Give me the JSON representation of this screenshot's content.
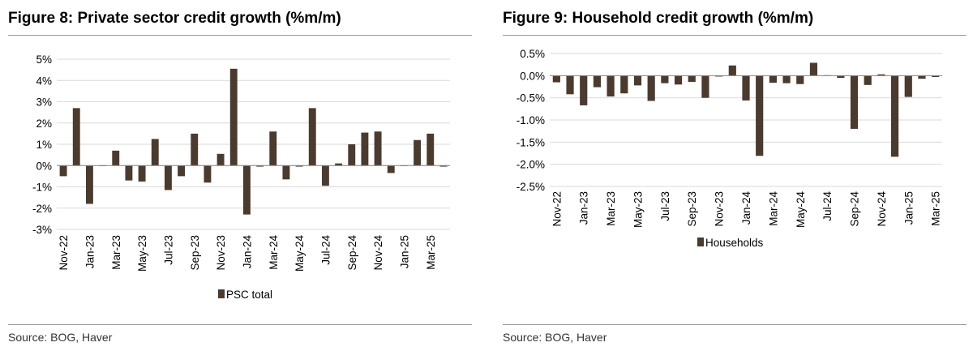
{
  "charts": [
    {
      "figure_title": "Figure 8: Private sector credit growth (%m/m)",
      "source": "Source: BOG, Haver"
    },
    {
      "figure_title": "Figure 9: Household credit growth (%m/m)",
      "source": "Source: BOG, Haver"
    }
  ],
  "colors": {
    "bar": "#4b3a2e",
    "grid": "#d9d9d9",
    "axis": "#888888"
  },
  "chart_data": [
    {
      "type": "bar",
      "title": "Figure 8: Private sector credit growth (%m/m)",
      "categories": [
        "Nov-22",
        "Dec-22",
        "Jan-23",
        "Feb-23",
        "Mar-23",
        "Apr-23",
        "May-23",
        "Jun-23",
        "Jul-23",
        "Aug-23",
        "Sep-23",
        "Oct-23",
        "Nov-23",
        "Dec-23",
        "Jan-24",
        "Feb-24",
        "Mar-24",
        "Apr-24",
        "May-24",
        "Jun-24",
        "Jul-24",
        "Aug-24",
        "Sep-24",
        "Oct-24",
        "Nov-24",
        "Dec-24",
        "Jan-25",
        "Feb-25",
        "Mar-25",
        "Apr-25"
      ],
      "tick_labels": [
        "Nov-22",
        "Jan-23",
        "Mar-23",
        "May-23",
        "Jul-23",
        "Sep-23",
        "Nov-23",
        "Jan-24",
        "Mar-24",
        "May-24",
        "Jul-24",
        "Sep-24",
        "Nov-24",
        "Jan-25",
        "Mar-25"
      ],
      "y_tick_labels": [
        "5%",
        "4%",
        "3%",
        "2%",
        "1%",
        "0%",
        "-1%",
        "-2%",
        "-3%"
      ],
      "series": [
        {
          "name": "PSC total",
          "values": [
            -0.5,
            2.7,
            -1.8,
            0.0,
            0.7,
            -0.7,
            -0.75,
            1.25,
            -1.15,
            -0.5,
            1.5,
            -0.8,
            0.55,
            4.55,
            -2.3,
            -0.05,
            1.6,
            -0.65,
            -0.05,
            2.7,
            -0.95,
            0.1,
            1.0,
            1.55,
            1.6,
            -0.35,
            0.0,
            1.2,
            1.5,
            -0.05
          ]
        }
      ],
      "ylim": [
        -3,
        5
      ],
      "grid": true,
      "legend": "bottom"
    },
    {
      "type": "bar",
      "title": "Figure 9: Household credit growth (%m/m)",
      "categories": [
        "Nov-22",
        "Dec-22",
        "Jan-23",
        "Feb-23",
        "Mar-23",
        "Apr-23",
        "May-23",
        "Jun-23",
        "Jul-23",
        "Aug-23",
        "Sep-23",
        "Oct-23",
        "Nov-23",
        "Dec-23",
        "Jan-24",
        "Feb-24",
        "Mar-24",
        "Apr-24",
        "May-24",
        "Jun-24",
        "Jul-24",
        "Aug-24",
        "Sep-24",
        "Oct-24",
        "Nov-24",
        "Dec-24",
        "Jan-25",
        "Feb-25",
        "Mar-25"
      ],
      "tick_labels": [
        "Nov-22",
        "Jan-23",
        "Mar-23",
        "May-23",
        "Jul-23",
        "Sep-23",
        "Nov-23",
        "Jan-24",
        "Mar-24",
        "May-24",
        "Jul-24",
        "Sep-24",
        "Nov-24",
        "Jan-25",
        "Mar-25"
      ],
      "y_tick_labels": [
        "0.5%",
        "0.0%",
        "-0.5%",
        "-1.0%",
        "-1.5%",
        "-2.0%",
        "-2.5%"
      ],
      "series": [
        {
          "name": "Households",
          "values": [
            -0.15,
            -0.42,
            -0.67,
            -0.26,
            -0.47,
            -0.4,
            -0.22,
            -0.57,
            -0.17,
            -0.2,
            -0.14,
            -0.5,
            -0.02,
            0.23,
            -0.56,
            -1.81,
            -0.16,
            -0.17,
            -0.19,
            0.29,
            0.01,
            -0.05,
            -1.2,
            -0.21,
            0.03,
            -1.83,
            -0.48,
            -0.07,
            -0.03
          ]
        }
      ],
      "ylim": [
        -2.5,
        0.5
      ],
      "grid": true,
      "legend": "bottom"
    }
  ]
}
